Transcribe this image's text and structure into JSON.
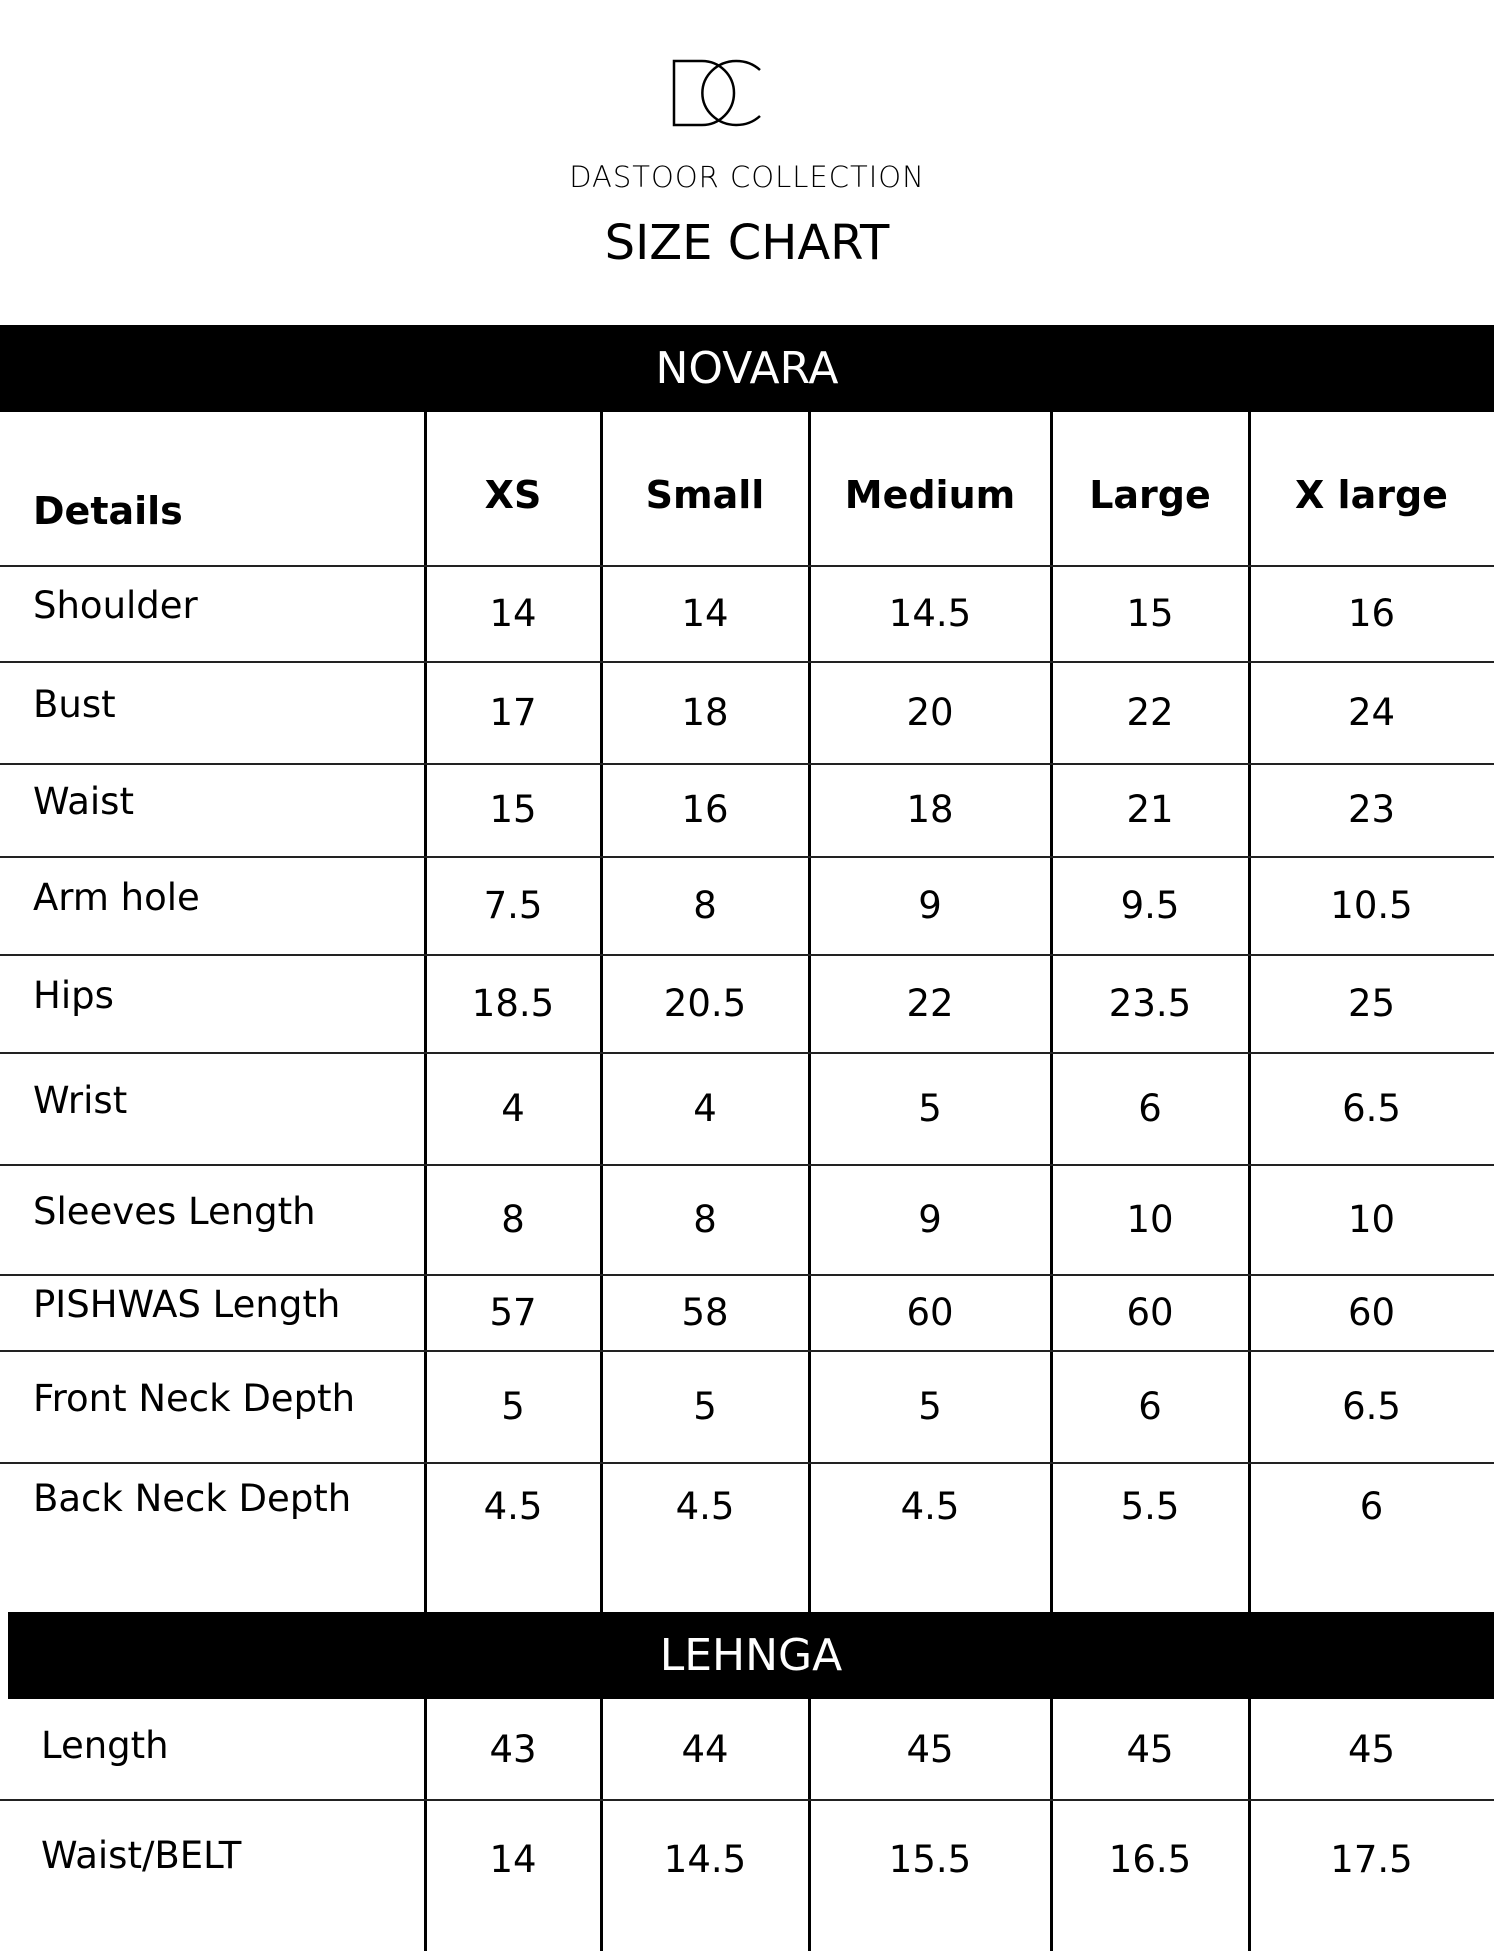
{
  "brand": {
    "logo_text": "DC",
    "name": "DASTOOR COLLECTION",
    "title": "SIZE CHART"
  },
  "sections": [
    {
      "name": "NOVARA",
      "header": [
        "Details",
        "XS",
        "Small",
        "Medium",
        "Large",
        "X large"
      ],
      "rows": [
        [
          "Shoulder",
          "14",
          "14",
          "14.5",
          "15",
          "16"
        ],
        [
          "Bust",
          "17",
          "18",
          "20",
          "22",
          "24"
        ],
        [
          "Waist",
          "15",
          "16",
          "18",
          "21",
          "23"
        ],
        [
          "Arm hole",
          "7.5",
          "8",
          "9",
          "9.5",
          "10.5"
        ],
        [
          "Hips",
          "18.5",
          "20.5",
          "22",
          "23.5",
          "25"
        ],
        [
          "Wrist",
          "4",
          "4",
          "5",
          "6",
          "6.5"
        ],
        [
          "Sleeves Length",
          "8",
          "8",
          "9",
          "10",
          "10"
        ],
        [
          "PISHWAS Length",
          "57",
          "58",
          "60",
          "60",
          "60"
        ],
        [
          "Front Neck Depth",
          "5",
          "5",
          "5",
          "6",
          "6.5"
        ],
        [
          "Back Neck Depth",
          "4.5",
          "4.5",
          "4.5",
          "5.5",
          "6"
        ]
      ]
    },
    {
      "name": "LEHNGA",
      "rows": [
        [
          "Length",
          "43",
          "44",
          "45",
          "45",
          "45"
        ],
        [
          "Waist/BELT",
          "14",
          "14.5",
          "15.5",
          "16.5",
          "17.5"
        ]
      ]
    }
  ]
}
